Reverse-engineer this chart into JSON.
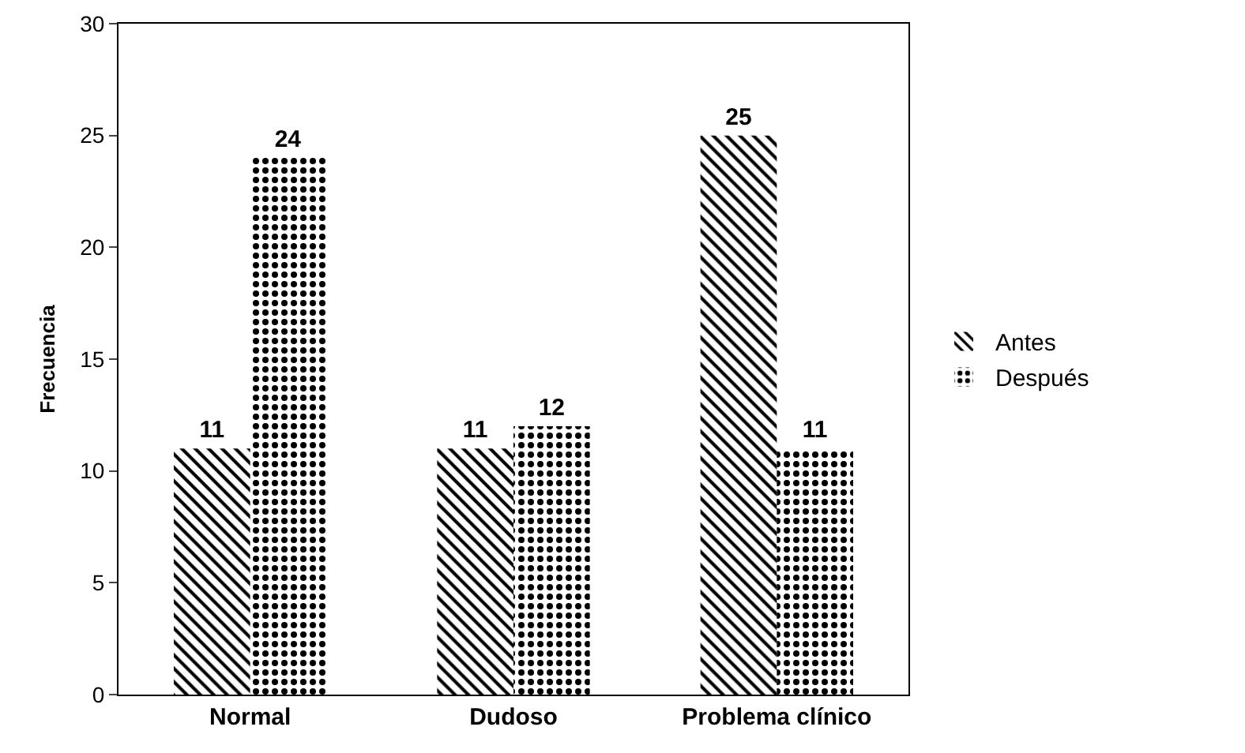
{
  "chart_data": {
    "type": "bar",
    "ylabel": "Frecuencia",
    "categories": [
      "Normal",
      "Dudoso",
      "Problema clínico"
    ],
    "series": [
      {
        "name": "Antes",
        "color": "#000000",
        "values": [
          11,
          11,
          25
        ]
      },
      {
        "name": "Después",
        "color": "#000000",
        "values": [
          24,
          12,
          11
        ]
      }
    ],
    "ylim": [
      0,
      30
    ],
    "yticks": [
      0,
      5,
      10,
      15,
      20,
      25,
      30
    ],
    "grid": false,
    "legend": "right",
    "data_labels": true
  }
}
